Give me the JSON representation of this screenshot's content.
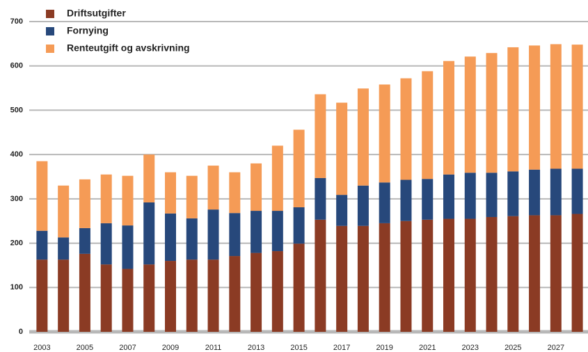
{
  "chart_data": {
    "type": "stacked_bar",
    "categories": [
      "2003",
      null,
      "2005",
      null,
      "2007",
      null,
      "2009",
      null,
      "2011",
      null,
      "2013",
      null,
      "2015",
      null,
      "2017",
      null,
      "2019",
      null,
      "2021",
      null,
      "2023",
      null,
      "2025",
      null,
      "2027",
      null
    ],
    "series": [
      {
        "name": "Driftsutgifter",
        "color": "#8b3b24",
        "values": [
          163,
          163,
          176,
          152,
          142,
          152,
          160,
          163,
          163,
          171,
          178,
          182,
          199,
          253,
          239,
          239,
          245,
          250,
          253,
          255,
          255,
          259,
          261,
          263,
          263,
          266
        ]
      },
      {
        "name": "Fornying",
        "color": "#27487b",
        "values": [
          65,
          50,
          58,
          93,
          98,
          140,
          107,
          93,
          113,
          97,
          95,
          91,
          82,
          94,
          70,
          91,
          92,
          93,
          92,
          100,
          104,
          100,
          101,
          103,
          105,
          102
        ]
      },
      {
        "name": "Renteutgift og avskrivning",
        "color": "#f59b56",
        "values": [
          157,
          117,
          110,
          110,
          112,
          108,
          93,
          96,
          99,
          92,
          107,
          147,
          175,
          189,
          208,
          219,
          221,
          229,
          243,
          256,
          262,
          270,
          280,
          280,
          281,
          280
        ]
      }
    ],
    "ylim": [
      0,
      700
    ],
    "yticks": [
      0,
      100,
      200,
      300,
      400,
      500,
      600,
      700
    ],
    "grid": true,
    "legend": "top-left"
  }
}
